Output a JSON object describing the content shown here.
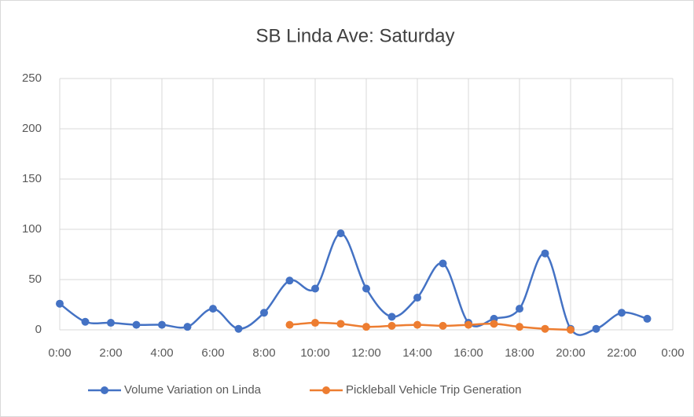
{
  "chart_data": {
    "type": "line",
    "title": "SB Linda Ave: Saturday",
    "x": [
      0,
      1,
      2,
      3,
      4,
      5,
      6,
      7,
      8,
      9,
      10,
      11,
      12,
      13,
      14,
      15,
      16,
      17,
      18,
      19,
      20,
      21,
      22,
      23
    ],
    "series": [
      {
        "name": "Volume Variation on Linda",
        "color": "#4472c4",
        "values": [
          26,
          8,
          7,
          5,
          5,
          3,
          21,
          1,
          17,
          49,
          41,
          96,
          41,
          13,
          32,
          66,
          7,
          11,
          21,
          76,
          1,
          1,
          17,
          11
        ]
      },
      {
        "name": "Pickleball Vehicle Trip Generation",
        "color": "#ed7d31",
        "values": [
          null,
          null,
          null,
          null,
          null,
          null,
          null,
          null,
          null,
          5,
          7,
          6,
          3,
          4,
          5,
          4,
          5,
          6,
          3,
          1,
          0,
          null,
          null,
          null
        ]
      }
    ],
    "xlim": [
      0,
      24
    ],
    "xticks": [
      {
        "value": 0,
        "label": "0:00"
      },
      {
        "value": 2,
        "label": "2:00"
      },
      {
        "value": 4,
        "label": "4:00"
      },
      {
        "value": 6,
        "label": "6:00"
      },
      {
        "value": 8,
        "label": "8:00"
      },
      {
        "value": 10,
        "label": "10:00"
      },
      {
        "value": 12,
        "label": "12:00"
      },
      {
        "value": 14,
        "label": "14:00"
      },
      {
        "value": 16,
        "label": "16:00"
      },
      {
        "value": 18,
        "label": "18:00"
      },
      {
        "value": 20,
        "label": "20:00"
      },
      {
        "value": 22,
        "label": "22:00"
      },
      {
        "value": 24,
        "label": "0:00"
      }
    ],
    "ylim": [
      0,
      250
    ],
    "yticks": [
      0,
      50,
      100,
      150,
      200,
      250
    ],
    "grid": true,
    "smooth": true,
    "legend": "bottom"
  }
}
